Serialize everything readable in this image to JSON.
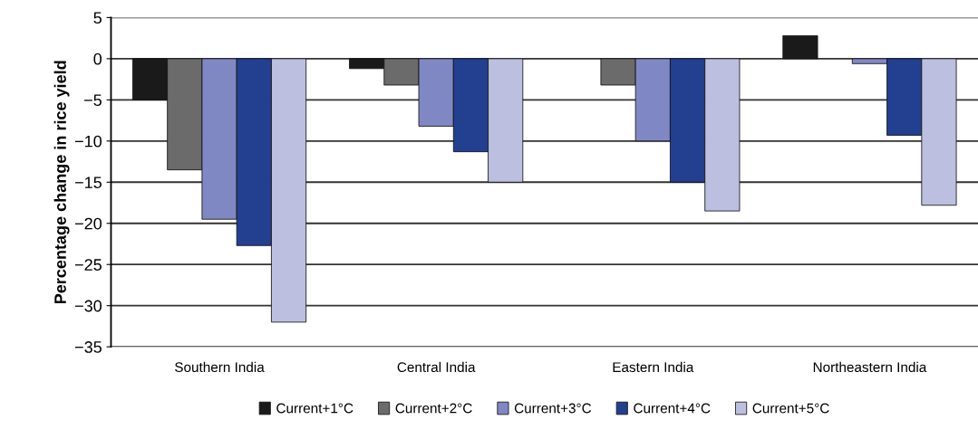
{
  "chart_data": {
    "type": "bar",
    "ylabel": "Percentage change in rice yield",
    "categories": [
      "Southern India",
      "Central India",
      "Eastern India",
      "Northeastern India"
    ],
    "series": [
      {
        "name": "Current+1°C",
        "color": "#1a1a1a",
        "values": [
          -5,
          -1.2,
          null,
          2.8
        ]
      },
      {
        "name": "Current+2°C",
        "color": "#6b6b6b",
        "values": [
          -13.5,
          -3.2,
          -3.2,
          null
        ]
      },
      {
        "name": "Current+3°C",
        "color": "#8088c4",
        "values": [
          -19.5,
          -8.2,
          -10,
          -0.6
        ]
      },
      {
        "name": "Current+4°C",
        "color": "#233f8f",
        "values": [
          -22.7,
          -11.3,
          -15,
          -9.3
        ]
      },
      {
        "name": "Current+5°C",
        "color": "#bcbfdf",
        "values": [
          -32,
          -15,
          -18.5,
          -17.8
        ]
      }
    ],
    "ylim": [
      -35,
      5
    ],
    "yticks": [
      5,
      0,
      {
        "value": -5,
        "label": "−5"
      },
      {
        "value": -10,
        "label": "−10"
      },
      {
        "value": -15,
        "label": "−15"
      },
      {
        "value": -20,
        "label": "−20"
      },
      {
        "value": -25,
        "label": "−25"
      },
      {
        "value": -30,
        "label": "−30"
      },
      {
        "value": -35,
        "label": "−35"
      }
    ],
    "grid": "y",
    "legend": "bottom"
  }
}
